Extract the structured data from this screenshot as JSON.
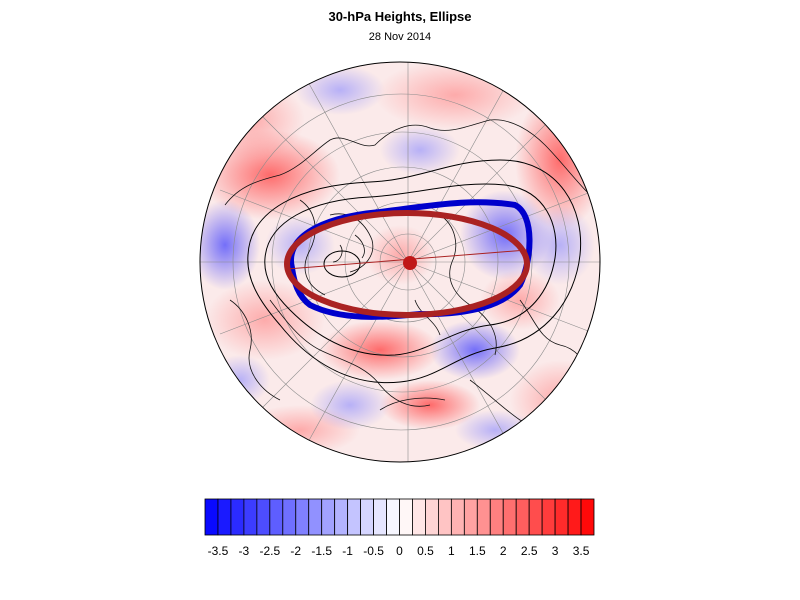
{
  "title": "30-hPa Heights, Ellipse",
  "subtitle": "28 Nov 2014",
  "colorbar": {
    "min": -3.75,
    "max": 3.75,
    "step": 0.25,
    "labels": [
      "-3.5",
      "-3",
      "-2.5",
      "-2",
      "-1.5",
      "-1",
      "-0.5",
      "0",
      "0.5",
      "1",
      "1.5",
      "2",
      "2.5",
      "3",
      "3.5"
    ],
    "low_color": "#0000ff",
    "mid_color": "#ffffff",
    "high_color": "#ff0000"
  },
  "overlay": {
    "ellipse_observed_color": "#0000cc",
    "ellipse_fitted_color": "#aa2222",
    "center_marker_color": "#c01818",
    "contour_color": "#000000"
  }
}
